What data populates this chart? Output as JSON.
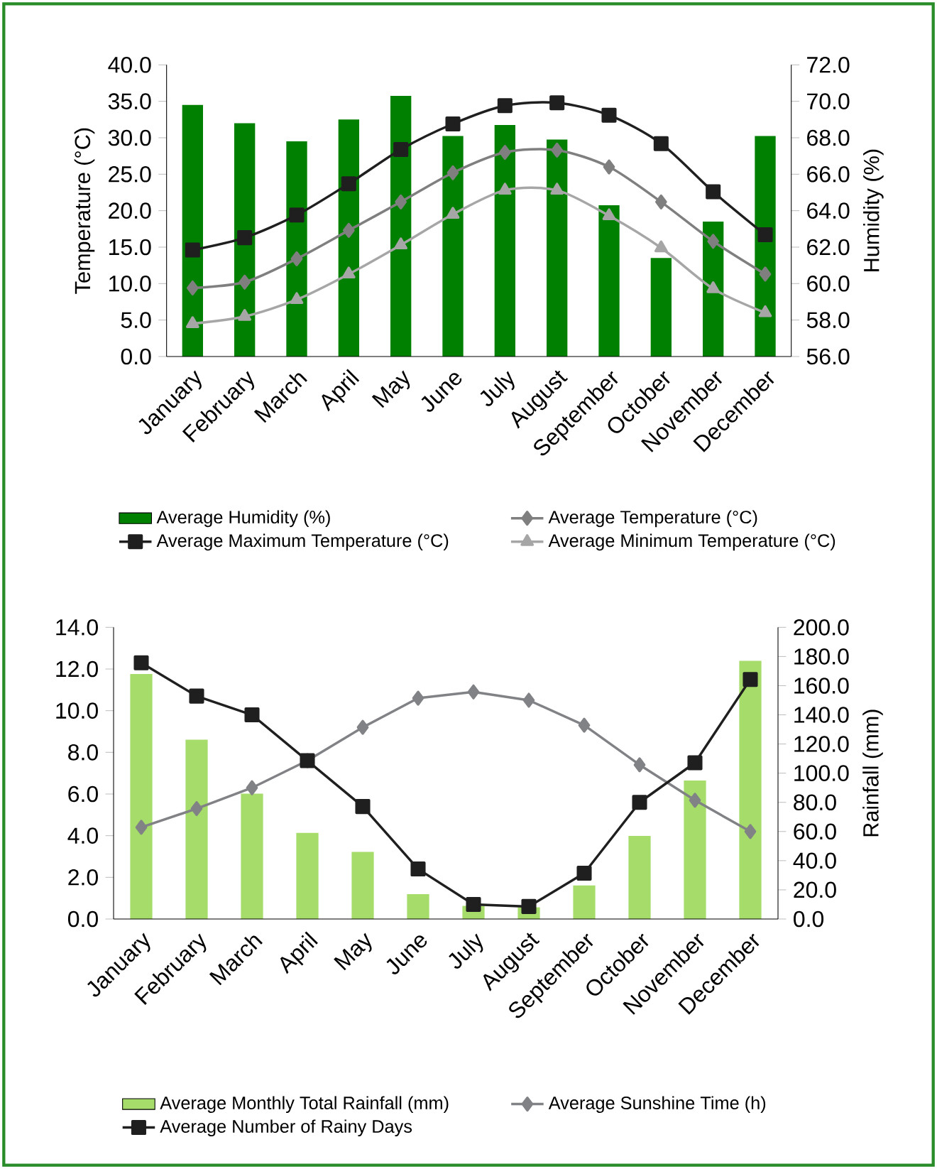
{
  "chart_data": [
    {
      "type": "bar",
      "categories": [
        "January",
        "February",
        "March",
        "April",
        "May",
        "June",
        "July",
        "August",
        "September",
        "October",
        "November",
        "December"
      ],
      "ylabel": "Temperature (°C)",
      "y2label": "Humidity (%)",
      "ylim": [
        0,
        40
      ],
      "yticks": [
        {
          "value": 0,
          "label": "0.0"
        },
        {
          "value": 5,
          "label": "5.0"
        },
        {
          "value": 10,
          "label": "10.0"
        },
        {
          "value": 15,
          "label": "15.0"
        },
        {
          "value": 20,
          "label": "20.0"
        },
        {
          "value": 25,
          "label": "25.0"
        },
        {
          "value": 30,
          "label": "30.0"
        },
        {
          "value": 35,
          "label": "35.0"
        },
        {
          "value": 40,
          "label": "40.0"
        }
      ],
      "y2lim": [
        56,
        72
      ],
      "y2ticks": [
        {
          "value": 56,
          "label": "56.0"
        },
        {
          "value": 58,
          "label": "58.0"
        },
        {
          "value": 60,
          "label": "60.0"
        },
        {
          "value": 62,
          "label": "62.0"
        },
        {
          "value": 64,
          "label": "64.0"
        },
        {
          "value": 66,
          "label": "66.0"
        },
        {
          "value": 68,
          "label": "68.0"
        },
        {
          "value": 70,
          "label": "70.0"
        },
        {
          "value": 72,
          "label": "72.0"
        }
      ],
      "legend": "bottom",
      "series": [
        {
          "name": "Average Humidity (%)",
          "axis": "y2",
          "color": "#008000",
          "values": [
            69.8,
            68.8,
            67.8,
            69.0,
            70.3,
            68.1,
            68.7,
            67.9,
            64.3,
            61.4,
            63.4,
            68.1
          ]
        },
        {
          "name": "Average Temperature (°C)",
          "type": "line",
          "marker": "diamond",
          "color": "#7f7f7f",
          "values": [
            9.4,
            10.2,
            13.4,
            17.3,
            21.2,
            25.2,
            28.0,
            28.3,
            26.0,
            21.2,
            15.8,
            11.3
          ]
        },
        {
          "name": "Average Maximum Temperature (°C)",
          "type": "line",
          "marker": "square",
          "color": "#1f1f1f",
          "values": [
            14.6,
            16.3,
            19.4,
            23.7,
            28.4,
            31.9,
            34.4,
            34.8,
            33.1,
            29.2,
            22.6,
            16.7
          ]
        },
        {
          "name": "Average Minimum Temperature (°C)",
          "type": "line",
          "marker": "triangle",
          "color": "#a6a6a6",
          "values": [
            4.5,
            5.5,
            7.8,
            11.3,
            15.3,
            19.5,
            22.8,
            22.8,
            19.3,
            14.9,
            9.3,
            6.0
          ]
        }
      ]
    },
    {
      "type": "bar",
      "categories": [
        "January",
        "February",
        "March",
        "April",
        "May",
        "June",
        "July",
        "August",
        "September",
        "October",
        "November",
        "December"
      ],
      "y2label": "Rainfall (mm)",
      "ylim": [
        0,
        14
      ],
      "yticks": [
        {
          "value": 0,
          "label": "0.0"
        },
        {
          "value": 2,
          "label": "2.0"
        },
        {
          "value": 4,
          "label": "4.0"
        },
        {
          "value": 6,
          "label": "6.0"
        },
        {
          "value": 8,
          "label": "8.0"
        },
        {
          "value": 10,
          "label": "10.0"
        },
        {
          "value": 12,
          "label": "12.0"
        },
        {
          "value": 14,
          "label": "14.0"
        }
      ],
      "y2lim": [
        0,
        200
      ],
      "y2ticks": [
        {
          "value": 0,
          "label": "0.0"
        },
        {
          "value": 20,
          "label": "20.0"
        },
        {
          "value": 40,
          "label": "40.0"
        },
        {
          "value": 60,
          "label": "60.0"
        },
        {
          "value": 80,
          "label": "80.0"
        },
        {
          "value": 100,
          "label": "100.0"
        },
        {
          "value": 120,
          "label": "120.0"
        },
        {
          "value": 140,
          "label": "140.0"
        },
        {
          "value": 160,
          "label": "160.0"
        },
        {
          "value": 180,
          "label": "180.0"
        },
        {
          "value": 200,
          "label": "200.0"
        }
      ],
      "legend": "bottom",
      "series": [
        {
          "name": "Average Monthly Total Rainfall (mm)",
          "axis": "y2",
          "color": "#a5dc6a",
          "values": [
            168,
            123,
            86,
            59,
            46,
            17,
            9,
            8,
            23,
            57,
            95,
            177
          ]
        },
        {
          "name": "Average Sunshine Time (h)",
          "type": "line",
          "marker": "diamond",
          "color": "#808285",
          "values": [
            4.4,
            5.3,
            6.3,
            7.6,
            9.2,
            10.6,
            10.9,
            10.5,
            9.3,
            7.4,
            5.7,
            4.2
          ]
        },
        {
          "name": "Average Number of Rainy Days",
          "type": "line",
          "marker": "square",
          "color": "#1f1f1f",
          "values": [
            12.3,
            10.7,
            9.8,
            7.6,
            5.4,
            2.4,
            0.7,
            0.6,
            2.2,
            5.6,
            7.5,
            11.5
          ]
        }
      ]
    }
  ]
}
